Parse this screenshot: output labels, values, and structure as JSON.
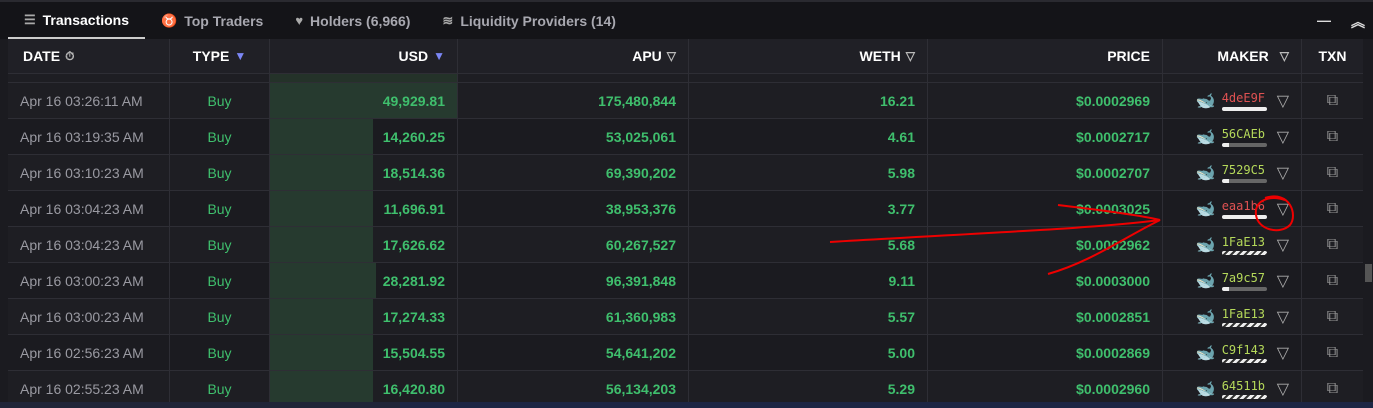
{
  "tabs": [
    {
      "label": "Transactions",
      "icon": "list-icon"
    },
    {
      "label": "Top Traders",
      "icon": "medal-icon"
    },
    {
      "label": "Holders (6,966)",
      "icon": "heart-icon"
    },
    {
      "label": "Liquidity Providers (14)",
      "icon": "waves-icon"
    }
  ],
  "window": {
    "minimize": "—",
    "collapse": "︽"
  },
  "columns": [
    "DATE",
    "TYPE",
    "USD",
    "APU",
    "WETH",
    "PRICE",
    "MAKER",
    "TXN"
  ],
  "colors": {
    "green": "#3fbf6d",
    "accent": "#7b86f5",
    "red_maker": "#e05252",
    "lime_maker": "#b5d95a"
  },
  "rows": [
    {
      "date": "Apr 16 03:26:11 AM",
      "type": "Buy",
      "usd": "49,929.81",
      "apu": "175,480,844",
      "weth": "16.21",
      "price": "$0.0002969",
      "maker": "4deE9F",
      "maker_color": "red",
      "bar": "full"
    },
    {
      "date": "Apr 16 03:19:35 AM",
      "type": "Buy",
      "usd": "14,260.25",
      "apu": "53,025,061",
      "weth": "4.61",
      "price": "$0.0002717",
      "maker": "56CAEb",
      "maker_color": "lime",
      "bar": "partial"
    },
    {
      "date": "Apr 16 03:10:23 AM",
      "type": "Buy",
      "usd": "18,514.36",
      "apu": "69,390,202",
      "weth": "5.98",
      "price": "$0.0002707",
      "maker": "7529C5",
      "maker_color": "lime",
      "bar": "partial"
    },
    {
      "date": "Apr 16 03:04:23 AM",
      "type": "Buy",
      "usd": "11,696.91",
      "apu": "38,953,376",
      "weth": "3.77",
      "price": "$0.0003025",
      "maker": "eaa1b6",
      "maker_color": "red",
      "bar": "full"
    },
    {
      "date": "Apr 16 03:04:23 AM",
      "type": "Buy",
      "usd": "17,626.62",
      "apu": "60,267,527",
      "weth": "5.68",
      "price": "$0.0002962",
      "maker": "1FaE13",
      "maker_color": "lime",
      "bar": "striped"
    },
    {
      "date": "Apr 16 03:00:23 AM",
      "type": "Buy",
      "usd": "28,281.92",
      "apu": "96,391,848",
      "weth": "9.11",
      "price": "$0.0003000",
      "maker": "7a9c57",
      "maker_color": "lime",
      "bar": "partial"
    },
    {
      "date": "Apr 16 03:00:23 AM",
      "type": "Buy",
      "usd": "17,274.33",
      "apu": "61,360,983",
      "weth": "5.57",
      "price": "$0.0002851",
      "maker": "1FaE13",
      "maker_color": "lime",
      "bar": "striped"
    },
    {
      "date": "Apr 16 02:56:23 AM",
      "type": "Buy",
      "usd": "15,504.55",
      "apu": "54,641,202",
      "weth": "5.00",
      "price": "$0.0002869",
      "maker": "C9f143",
      "maker_color": "lime",
      "bar": "striped"
    },
    {
      "date": "Apr 16 02:55:23 AM",
      "type": "Buy",
      "usd": "16,420.80",
      "apu": "56,134,203",
      "weth": "5.29",
      "price": "$0.0002960",
      "maker": "64511b",
      "maker_color": "lime",
      "bar": "striped"
    }
  ]
}
